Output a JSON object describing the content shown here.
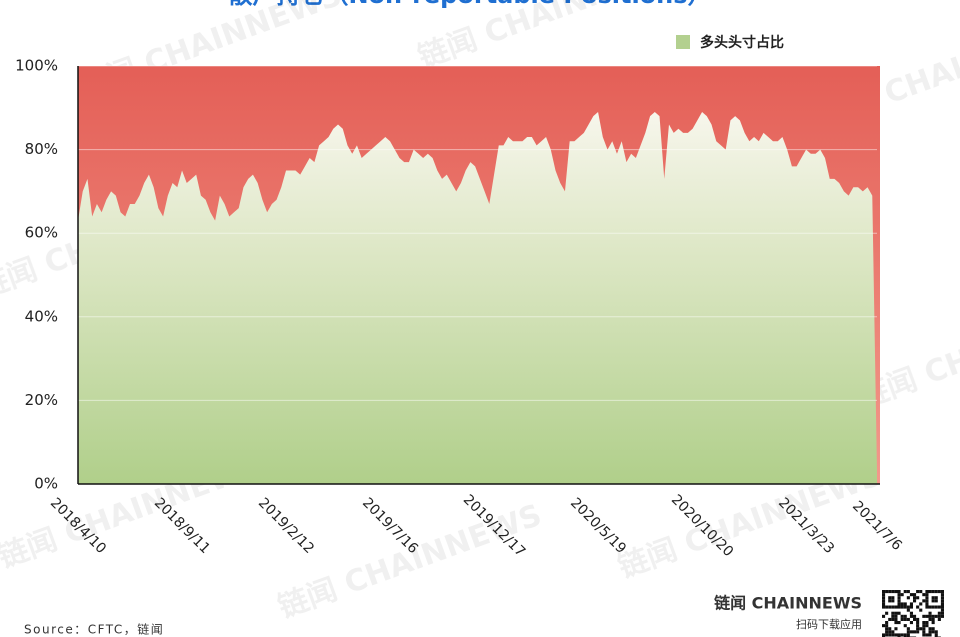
{
  "chart_data": {
    "type": "area",
    "title": "散户持仓（Non-reportable Positions）",
    "categories": [
      "2018/4/10",
      null,
      null,
      null,
      null,
      null,
      null,
      null,
      null,
      null,
      null,
      null,
      null,
      null,
      null,
      null,
      null,
      null,
      null,
      null,
      null,
      null,
      "2018/9/11",
      null,
      null,
      null,
      null,
      null,
      null,
      null,
      null,
      null,
      null,
      null,
      null,
      null,
      null,
      null,
      null,
      null,
      null,
      null,
      null,
      null,
      "2019/2/12",
      null,
      null,
      null,
      null,
      null,
      null,
      null,
      null,
      null,
      null,
      null,
      null,
      null,
      null,
      null,
      null,
      null,
      null,
      null,
      null,
      null,
      "2019/7/16",
      null,
      null,
      null,
      null,
      null,
      null,
      null,
      null,
      null,
      null,
      null,
      null,
      null,
      null,
      null,
      null,
      null,
      null,
      null,
      null,
      null,
      "2019/12/17",
      null,
      null,
      null,
      null,
      null,
      null,
      null,
      null,
      null,
      null,
      null,
      null,
      null,
      null,
      null,
      null,
      null,
      null,
      null,
      null,
      null,
      "2020/5/19",
      null,
      null,
      null,
      null,
      null,
      null,
      null,
      null,
      null,
      null,
      null,
      null,
      null,
      null,
      null,
      null,
      null,
      null,
      null,
      null,
      null,
      "2020/10/20",
      null,
      null,
      null,
      null,
      null,
      null,
      null,
      null,
      null,
      null,
      null,
      null,
      null,
      null,
      null,
      null,
      null,
      null,
      null,
      null,
      null,
      "2021/3/23",
      null,
      null,
      null,
      null,
      null,
      null,
      null,
      null,
      null,
      null,
      null,
      null,
      null,
      null,
      "2021/7/6"
    ],
    "series": [
      {
        "name": "多头头寸占比",
        "color": "#b3d08f",
        "values": [
          63,
          70,
          73,
          64,
          67,
          65,
          68,
          70,
          69,
          65,
          64,
          67,
          67,
          69,
          72,
          74,
          71,
          66,
          64,
          69,
          72,
          71,
          75,
          72,
          73,
          74,
          69,
          68,
          65,
          63,
          69,
          67,
          64,
          65,
          66,
          71,
          73,
          74,
          72,
          68,
          65,
          67,
          68,
          71,
          75,
          75,
          75,
          74,
          76,
          78,
          77,
          81,
          82,
          83,
          85,
          86,
          85,
          81,
          79,
          81,
          78,
          79,
          80,
          81,
          82,
          83,
          82,
          80,
          78,
          77,
          77,
          80,
          79,
          78,
          79,
          78,
          75,
          73,
          74,
          72,
          70,
          72,
          75,
          77,
          76,
          73,
          70,
          67,
          74,
          81,
          81,
          83,
          82,
          82,
          82,
          83,
          83,
          81,
          82,
          83,
          80,
          75,
          72,
          70,
          82,
          82,
          83,
          84,
          86,
          88,
          89,
          83,
          80,
          82,
          79,
          82,
          77,
          79,
          78,
          81,
          84,
          88,
          89,
          88,
          73,
          86,
          84,
          85,
          84,
          84,
          85,
          87,
          89,
          88,
          86,
          82,
          81,
          80,
          87,
          88,
          87,
          84,
          82,
          83,
          82,
          84,
          83,
          82,
          82,
          83,
          80,
          76,
          76,
          78,
          80,
          79,
          79,
          80,
          78,
          73,
          73,
          72,
          70,
          69,
          71,
          71,
          70,
          71,
          69,
          3
        ]
      }
    ],
    "ylim": [
      0,
      100
    ],
    "yticks": [
      {
        "value": 0,
        "label": "0%"
      },
      {
        "value": 20,
        "label": "20%"
      },
      {
        "value": 40,
        "label": "40%"
      },
      {
        "value": 60,
        "label": "60%"
      },
      {
        "value": 80,
        "label": "80%"
      },
      {
        "value": 100,
        "label": "100%"
      }
    ],
    "grid": true,
    "legend": "top-right",
    "background_color": "#e8625a",
    "source": "Source：CFTC，链闻",
    "brand": "链闻 CHAINNEWS",
    "brand_caption": "扫码下载应用",
    "watermark": "链闻 CHAINNEWS"
  }
}
